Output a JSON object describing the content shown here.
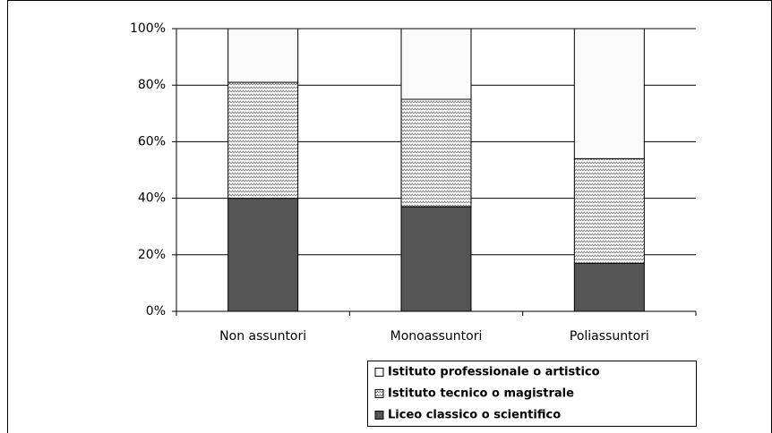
{
  "chart_data": {
    "type": "stacked_bar",
    "categories": [
      "Non assuntori",
      "Monoassuntori",
      "Poliassuntori"
    ],
    "series": [
      {
        "name": "Liceo classico o scientifico",
        "color": "#555555",
        "values": [
          40,
          37,
          17
        ]
      },
      {
        "name": "Istituto tecnico o magistrale",
        "color": "#ffffff",
        "pattern": "wave",
        "values": [
          41,
          38,
          37
        ]
      },
      {
        "name": "Istituto professionale o artistico",
        "color": "#fafafa",
        "values": [
          19,
          25,
          46
        ]
      }
    ],
    "ylim": [
      0,
      100
    ],
    "yticks": [
      {
        "value": 0,
        "label": "0%"
      },
      {
        "value": 20,
        "label": "20%"
      },
      {
        "value": 40,
        "label": "40%"
      },
      {
        "value": 60,
        "label": "60%"
      },
      {
        "value": 80,
        "label": "80%"
      },
      {
        "value": 100,
        "label": "100%"
      }
    ],
    "grid": true,
    "legend": "bottom-right"
  }
}
